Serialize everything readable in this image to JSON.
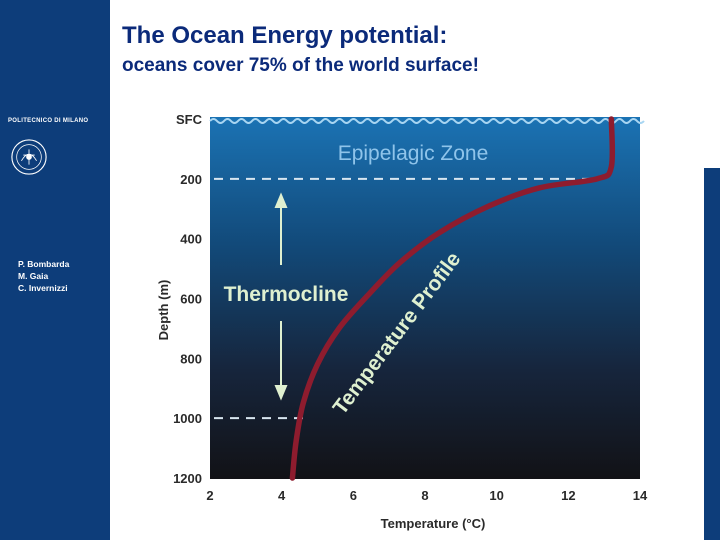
{
  "slide": {
    "title_line1": "The Ocean Energy potential:",
    "title_line2": "oceans cover 75% of the world surface!"
  },
  "sidebar": {
    "institution": "POLITECNICO DI MILANO",
    "authors": [
      "P. Bombarda",
      "M. Gaia",
      "C. Invernizzi"
    ]
  },
  "colors": {
    "sidebar": "#0d3d7a",
    "title": "#0b2a7a",
    "ocean_top": "#1b73b4",
    "ocean_bottom": "#121216",
    "profile_line": "#8e1c2e",
    "zone_text": "#8fc4ea",
    "label_text": "#dff0d0"
  },
  "chart_data": {
    "type": "line",
    "xlabel": "Temperature (°C)",
    "ylabel": "Depth (m)",
    "xlim": [
      2,
      14
    ],
    "ylim": [
      0,
      1200
    ],
    "y_inverted": true,
    "x_ticks": [
      "2",
      "4",
      "6",
      "8",
      "10",
      "12",
      "14"
    ],
    "y_ticks": [
      "SFC",
      "200",
      "400",
      "600",
      "800",
      "1000",
      "1200"
    ],
    "series": [
      {
        "name": "Temperature Profile",
        "x": [
          13.2,
          13.2,
          12.8,
          11.2,
          9.8,
          8.4,
          7.3,
          6.4,
          5.6,
          5.0,
          4.6,
          4.4,
          4.3
        ],
        "y": [
          0,
          160,
          200,
          230,
          290,
          380,
          480,
          590,
          700,
          820,
          950,
          1080,
          1200
        ]
      }
    ],
    "reference_lines": [
      {
        "depth": 200
      },
      {
        "depth": 1000
      }
    ],
    "annotations": {
      "zone": "Epipelagic Zone",
      "thermocline": "Thermocline",
      "profile": "Temperature Profile"
    }
  }
}
